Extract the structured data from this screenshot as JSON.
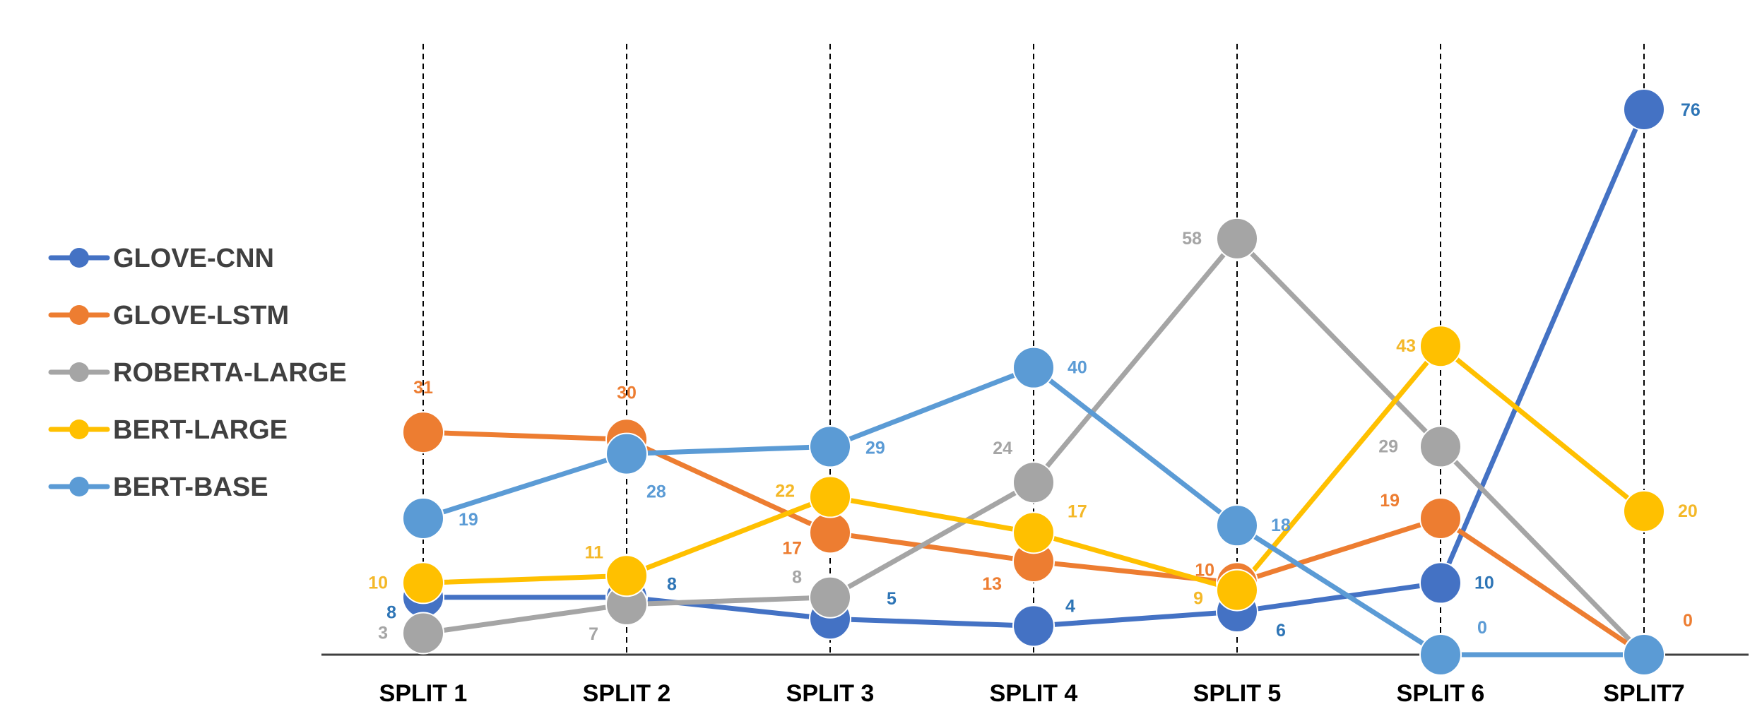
{
  "chart_data": {
    "type": "line",
    "title": "",
    "xlabel": "",
    "ylabel": "",
    "categories": [
      "SPLIT 1",
      "SPLIT 2",
      "SPLIT 3",
      "SPLIT 4",
      "SPLIT 5",
      "SPLIT 6",
      "SPLIT7"
    ],
    "ylim": [
      0,
      80
    ],
    "grid": false,
    "vertical_dashed_lines": true,
    "legend_position": "left",
    "series": [
      {
        "name": "GLOVE-CNN",
        "color": "#4472C4",
        "values": [
          8,
          8,
          5,
          4,
          6,
          10,
          76
        ]
      },
      {
        "name": "GLOVE-LSTM",
        "color": "#ED7D31",
        "values": [
          31,
          30,
          17,
          13,
          10,
          19,
          0
        ]
      },
      {
        "name": "ROBERTA-LARGE",
        "color": "#A5A5A5",
        "values": [
          3,
          7,
          8,
          24,
          58,
          29,
          0
        ]
      },
      {
        "name": "BERT-LARGE",
        "color": "#FFC000",
        "values": [
          10,
          11,
          22,
          17,
          9,
          43,
          20
        ]
      },
      {
        "name": "BERT-BASE",
        "color": "#5B9BD5",
        "values": [
          19,
          28,
          29,
          40,
          18,
          0,
          0
        ]
      }
    ],
    "label_colors": {
      "GLOVE-CNN": "#2E75B6",
      "GLOVE-LSTM": "#ED7D31",
      "ROBERTA-LARGE": "#A5A5A5",
      "BERT-LARGE": "#F4B828",
      "BERT-BASE": "#5B9BD5"
    }
  }
}
